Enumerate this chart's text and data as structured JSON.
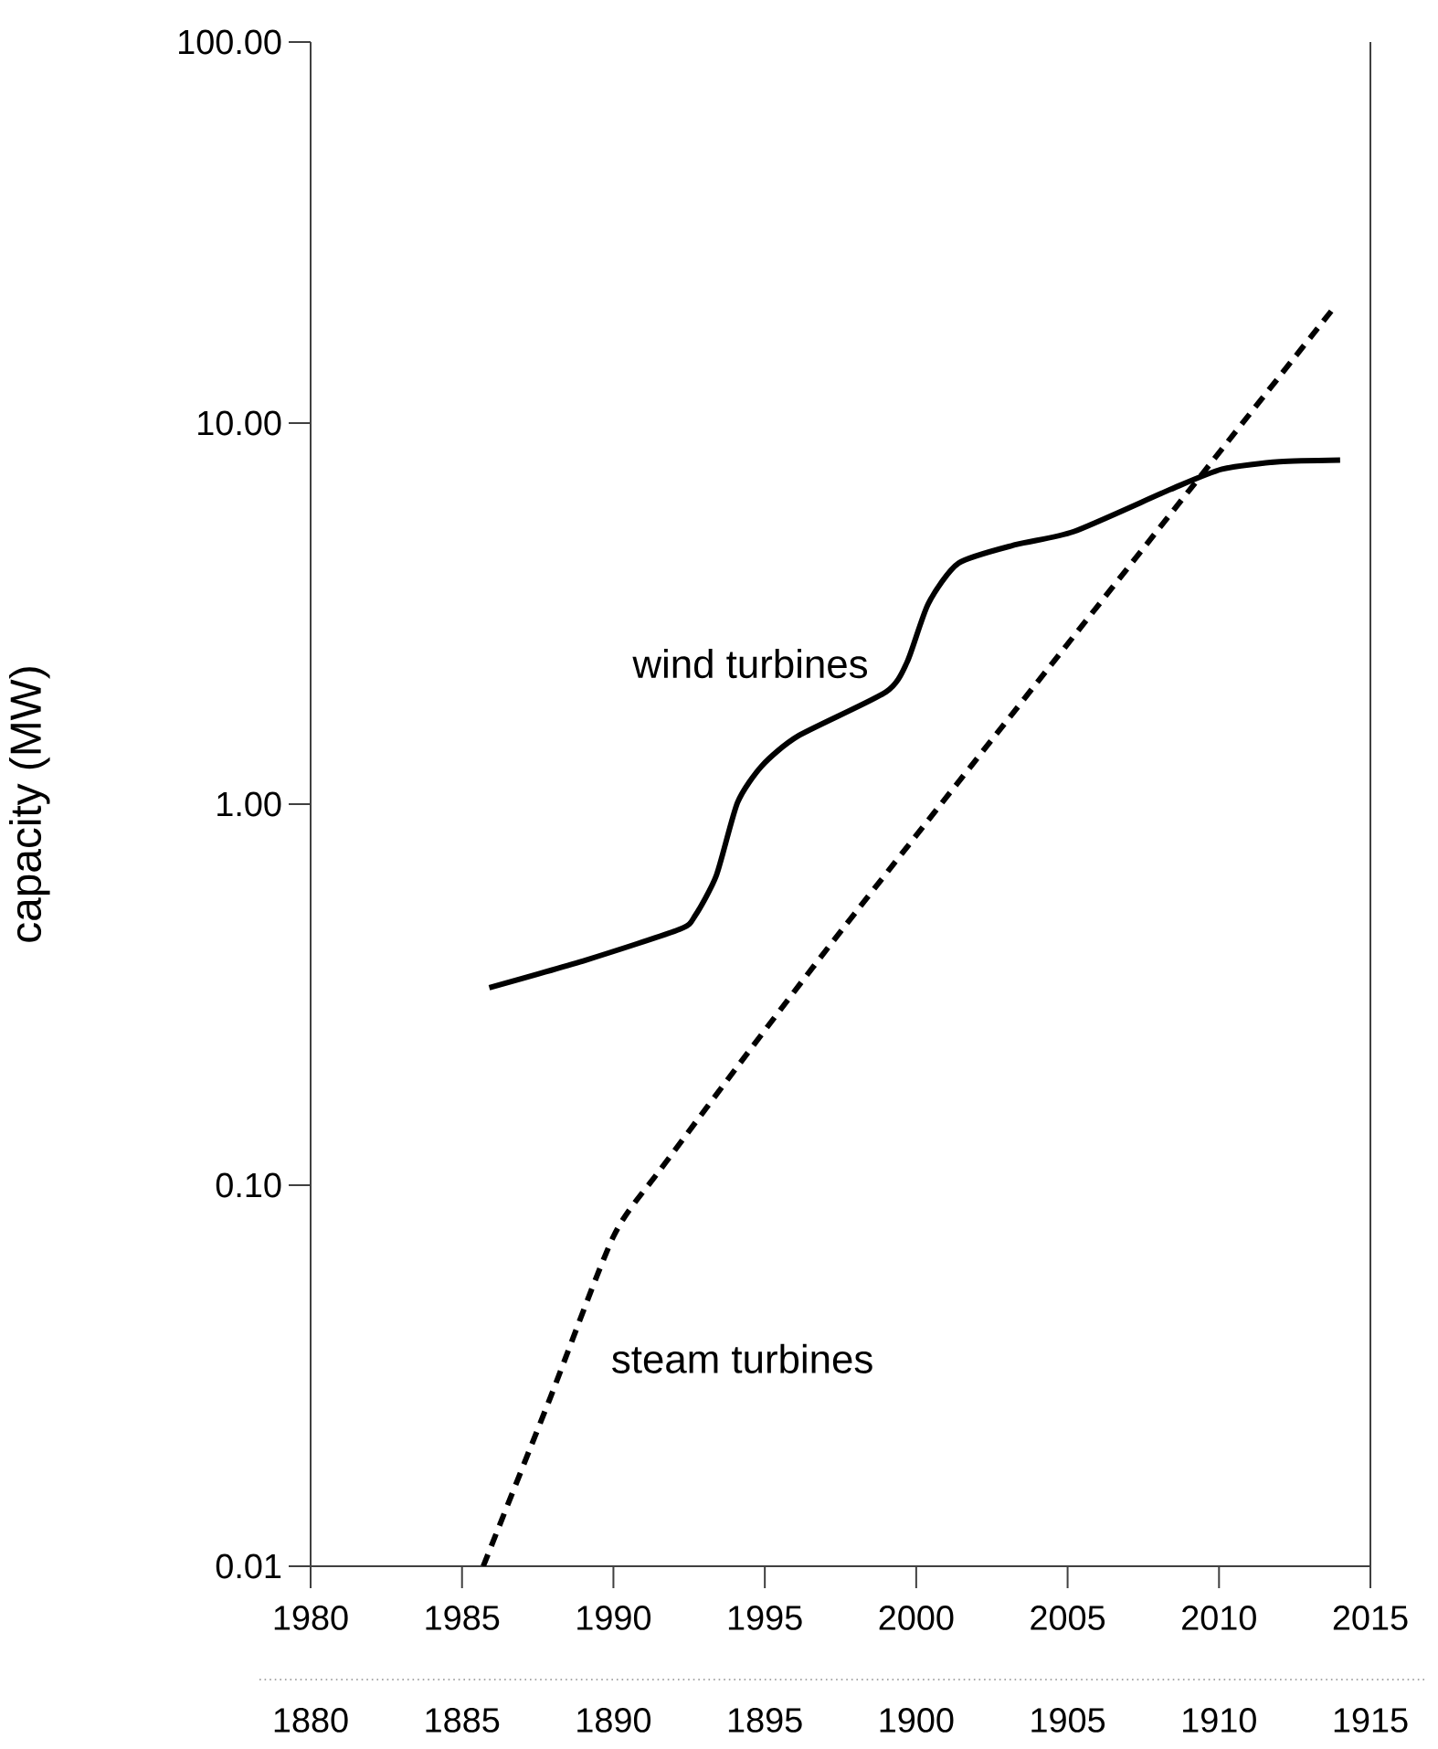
{
  "chart_data": {
    "type": "line",
    "ylabel": "capacity (MW)",
    "log": "y",
    "grid": false,
    "marker": "none",
    "xlim": [
      1980,
      2015
    ],
    "xticks": [
      1980,
      1985,
      1990,
      1995,
      2000,
      2005,
      2010,
      2015
    ],
    "x2lim": [
      1880,
      1915
    ],
    "x2ticks": [
      1880,
      1885,
      1890,
      1895,
      1900,
      1905,
      1910,
      1915
    ],
    "ylim": [
      0.01,
      100
    ],
    "yticks": [
      {
        "value": 0.01,
        "label": "0.01"
      },
      {
        "value": 0.1,
        "label": "0.10"
      },
      {
        "value": 1,
        "label": "1.00"
      },
      {
        "value": 10,
        "label": "10.00"
      },
      {
        "value": 100,
        "label": "100.00"
      }
    ],
    "series": [
      {
        "name": "wind turbines",
        "color": "#000000",
        "line_style": "solid",
        "x": [
          1985.9,
          1989.1,
          1992.2,
          1992.7,
          1993.4,
          1994.1,
          1994.9,
          1996.1,
          1999.0,
          1999.7,
          2000.4,
          2001.4,
          2003.3,
          2005.2,
          2008.4,
          2010.1,
          2012.0,
          2014.0
        ],
        "values": [
          0.33,
          0.39,
          0.47,
          0.51,
          0.65,
          1.01,
          1.26,
          1.51,
          1.97,
          2.36,
          3.36,
          4.29,
          4.8,
          5.19,
          6.7,
          7.57,
          7.92,
          8.0
        ]
      },
      {
        "name": "steam turbines",
        "color": "#000000",
        "line_style": "dashed",
        "axis": "x2",
        "x": [
          1885.7,
          1887.9,
          1890.0,
          1891.7,
          1897.7,
          1913.8
        ],
        "values": [
          0.01,
          0.0275,
          0.0733,
          0.114,
          0.485,
          20.1
        ]
      }
    ]
  }
}
